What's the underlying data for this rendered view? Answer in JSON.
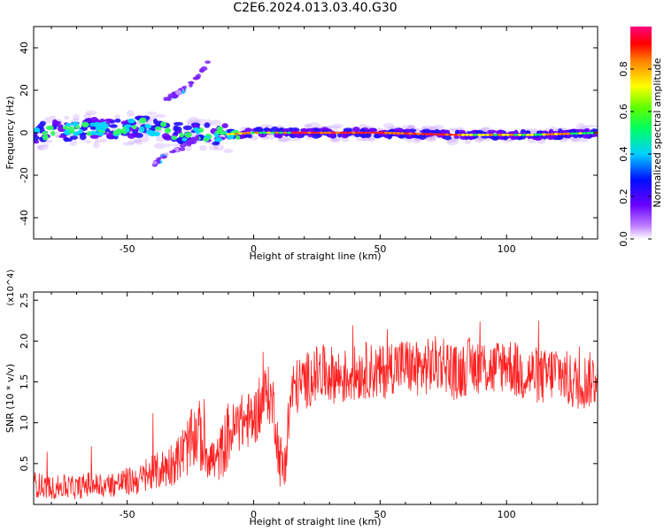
{
  "title": "C2E6.2024.013.03.40.G30",
  "colors": {
    "snr_line": "#ff2020",
    "ridge": "#ff2a2a",
    "axis": "#000000"
  },
  "chart_data": [
    {
      "type": "heatmap",
      "xlabel": "Height of straight line (km)",
      "ylabel": "Frequency (Hz)",
      "xlim": [
        -87,
        136
      ],
      "ylim": [
        -50,
        50
      ],
      "xticks": [
        -50,
        0,
        50,
        100
      ],
      "yticks": [
        -40,
        -20,
        0,
        20,
        40
      ],
      "colorbar": {
        "label": "Normalized spectral amplitude",
        "range": [
          0,
          1
        ],
        "ticks": [
          "0.0",
          "0.2",
          "0.4",
          "0.6",
          "0.8"
        ],
        "colormap": "rainbow (violet low to red high)"
      },
      "ridges": [
        {
          "x": [
            -87,
            -60,
            -45,
            -30,
            -15,
            0,
            20,
            50,
            80,
            110,
            136
          ],
          "y": [
            0,
            2,
            3,
            0,
            -1,
            0,
            0,
            0,
            -1,
            -1,
            0
          ]
        },
        {
          "x": [
            -40,
            -33,
            -27,
            -22
          ],
          "y": [
            -15,
            -10,
            -6,
            -2
          ]
        },
        {
          "x": [
            -35,
            -28,
            -22,
            -17
          ],
          "y": [
            15,
            20,
            26,
            36
          ]
        }
      ]
    },
    {
      "type": "line",
      "xlabel": "Height of straight line (km)",
      "ylabel": "SNR (10 * v/v)",
      "y_multiplier": "(x10^4)",
      "xlim": [
        -87,
        136
      ],
      "ylim": [
        0,
        2.6
      ],
      "xticks": [
        -50,
        0,
        50,
        100
      ],
      "yticks": [
        0.5,
        1.0,
        1.5,
        2.0,
        2.5
      ],
      "series": [
        {
          "x": [
            -87,
            -80,
            -75,
            -70,
            -65,
            -60,
            -55,
            -50,
            -45,
            -40,
            -35,
            -30,
            -25,
            -22,
            -20,
            -17,
            -15,
            -12,
            -10,
            -5,
            0,
            3,
            5,
            8,
            10,
            12,
            15,
            20,
            25,
            30,
            35,
            40,
            45,
            50,
            55,
            60,
            65,
            70,
            75,
            80,
            85,
            90,
            95,
            100,
            105,
            110,
            115,
            120,
            125,
            130,
            136
          ],
          "values": [
            0.25,
            0.2,
            0.22,
            0.2,
            0.25,
            0.22,
            0.25,
            0.28,
            0.3,
            0.38,
            0.45,
            0.55,
            0.75,
            0.9,
            0.7,
            0.6,
            0.5,
            0.7,
            0.85,
            1.0,
            1.05,
            1.2,
            1.4,
            1.2,
            0.6,
            0.4,
            1.4,
            1.5,
            1.6,
            1.6,
            1.55,
            1.6,
            1.65,
            1.6,
            1.7,
            1.7,
            1.65,
            1.7,
            1.75,
            1.6,
            1.7,
            1.7,
            1.65,
            1.75,
            1.6,
            1.6,
            1.55,
            1.65,
            1.5,
            1.5,
            1.55
          ]
        }
      ]
    }
  ]
}
